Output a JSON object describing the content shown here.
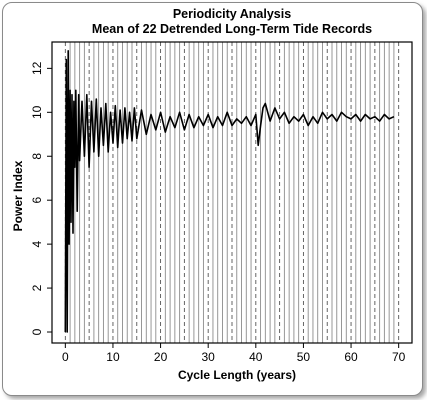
{
  "chart_data": {
    "type": "line",
    "title": "Periodicity Analysis",
    "subtitle": "Mean of 22 Detrended Long-Term Tide Records",
    "xlabel": "Cycle Length (years)",
    "ylabel": "Power Index",
    "xlim": [
      0,
      70
    ],
    "ylim": [
      0,
      12
    ],
    "x_ticks": [
      0,
      10,
      20,
      30,
      40,
      50,
      60,
      70
    ],
    "y_ticks": [
      0,
      2,
      4,
      6,
      8,
      10,
      12
    ],
    "grid": "vertical lines every 1 year; dashed every 5 years",
    "series": [
      {
        "x": [
          0.0,
          0.2,
          0.4,
          0.6,
          0.8,
          1.0,
          1.2,
          1.4,
          1.6,
          1.8,
          2.0,
          2.2,
          2.5,
          2.8,
          3.0,
          3.5,
          4.0,
          4.5,
          5.0,
          5.5,
          6.0,
          6.5,
          7.0,
          7.5,
          8.0,
          8.5,
          9.0,
          9.5,
          10.0,
          10.5,
          11.0,
          11.5,
          12.0,
          12.5,
          13.0,
          13.5,
          14.0,
          14.5,
          15.0,
          16.0,
          17.0,
          18.0,
          19.0,
          20.0,
          21.0,
          22.0,
          23.0,
          24.0,
          25.0,
          26.0,
          27.0,
          28.0,
          29.0,
          30.0,
          31.0,
          32.0,
          33.0,
          34.0,
          35.0,
          36.0,
          37.0,
          38.0,
          39.0,
          40.0,
          40.5,
          41.0,
          41.5,
          42.0,
          43.0,
          44.0,
          45.0,
          46.0,
          47.0,
          48.0,
          49.0,
          50.0,
          51.0,
          52.0,
          53.0,
          54.0,
          55.0,
          56.0,
          57.0,
          58.0,
          59.0,
          60.0,
          61.0,
          62.0,
          63.0,
          64.0,
          65.0,
          66.0,
          67.0,
          68.0,
          69.0
        ],
        "y": [
          0.0,
          12.4,
          0.0,
          12.8,
          4.0,
          11.0,
          5.0,
          10.8,
          4.5,
          10.5,
          7.5,
          11.0,
          5.5,
          10.8,
          7.8,
          10.5,
          8.0,
          10.8,
          7.5,
          10.5,
          8.2,
          10.6,
          8.0,
          10.2,
          8.5,
          10.4,
          8.2,
          10.0,
          8.6,
          10.3,
          8.4,
          10.1,
          8.6,
          10.2,
          8.8,
          10.0,
          8.7,
          10.2,
          8.8,
          10.1,
          9.0,
          9.9,
          9.2,
          10.0,
          9.1,
          9.8,
          9.3,
          10.0,
          9.2,
          9.9,
          9.3,
          9.8,
          9.4,
          9.9,
          9.3,
          9.8,
          9.4,
          10.0,
          9.4,
          9.7,
          9.5,
          9.8,
          9.4,
          9.9,
          8.5,
          9.4,
          10.2,
          10.4,
          9.6,
          10.2,
          9.7,
          10.0,
          9.5,
          9.8,
          9.6,
          9.9,
          9.4,
          9.8,
          9.5,
          10.0,
          9.7,
          9.9,
          9.6,
          10.0,
          9.8,
          9.7,
          9.9,
          9.6,
          9.9,
          9.7,
          9.8,
          9.6,
          9.9,
          9.7,
          9.8
        ]
      }
    ]
  }
}
